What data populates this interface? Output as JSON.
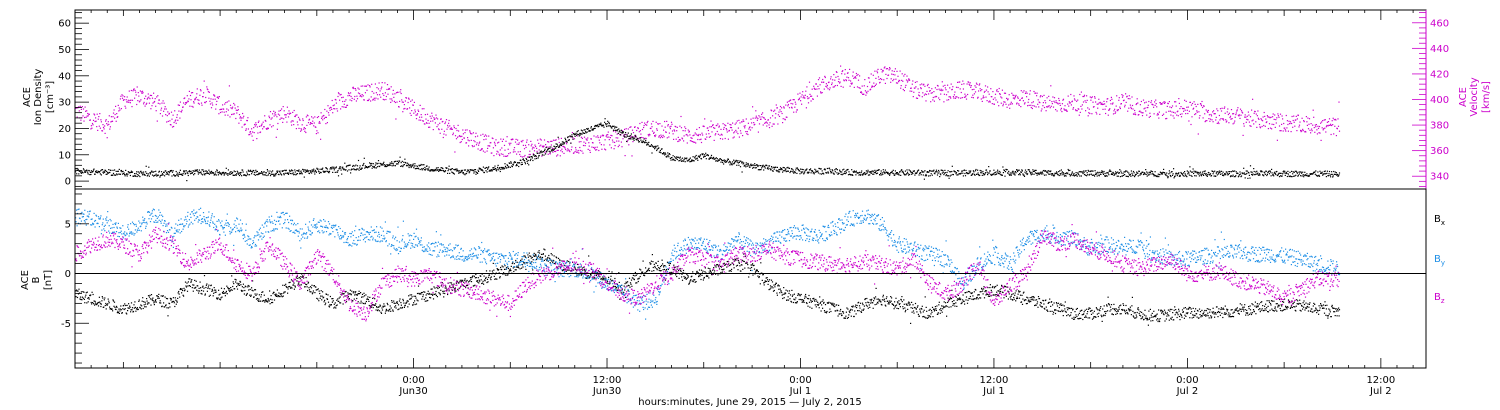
{
  "chart_data": [
    {
      "type": "scatter",
      "title": "",
      "ylabel_lines": [
        "ACE",
        "Ion Density",
        "[cm⁻³]"
      ],
      "ylim": [
        -3,
        65
      ],
      "yticks": [
        0,
        10,
        20,
        30,
        40,
        50,
        60
      ],
      "y2label_lines": [
        "ACE",
        "Velocity",
        "[km/s]"
      ],
      "y2lim": [
        330,
        470
      ],
      "y2ticks": [
        340,
        360,
        380,
        400,
        420,
        440,
        460
      ],
      "x_range_hours": [
        -21,
        62.8
      ],
      "series": [
        {
          "color": "#000000",
          "axis": "left",
          "x": [
            -21,
            -19,
            -17,
            -15,
            -13,
            -11,
            -9,
            -7,
            -5,
            -3,
            -1,
            1,
            3,
            5,
            7,
            9,
            10,
            11,
            12,
            13,
            14,
            15,
            16,
            17,
            18,
            19,
            20,
            21,
            22,
            23,
            24,
            25,
            26,
            27,
            28,
            30,
            32,
            34,
            36,
            38,
            40,
            42,
            44,
            46,
            48,
            50,
            52,
            54,
            56,
            57.4
          ],
          "values": [
            4,
            3.5,
            3,
            3.2,
            3.5,
            3.4,
            3.2,
            3.6,
            4.5,
            6,
            7,
            5,
            3.5,
            5,
            8,
            14,
            18,
            20,
            22,
            18,
            16,
            13,
            9,
            8,
            10,
            8,
            7,
            6,
            5,
            4.5,
            4,
            4,
            4,
            3.5,
            3.5,
            3.5,
            3.3,
            3.3,
            3.5,
            3.5,
            3.2,
            3.2,
            3,
            3,
            3,
            3,
            3,
            3,
            3,
            2.8
          ]
        },
        {
          "color": "#cc00cc",
          "axis": "right",
          "x": [
            -21,
            -20,
            -19,
            -18,
            -17,
            -16,
            -15,
            -14,
            -13,
            -12,
            -11,
            -10,
            -9,
            -8,
            -7,
            -6,
            -5,
            -4,
            -3,
            -2,
            -1,
            0,
            1,
            2,
            3,
            4,
            5,
            6,
            7,
            8,
            9,
            10,
            11,
            12,
            13,
            14,
            15,
            16,
            17,
            18,
            19,
            20,
            21,
            22,
            23,
            24,
            25,
            26,
            27,
            28,
            29,
            30,
            31,
            32,
            33,
            34,
            35,
            36,
            37,
            38,
            39,
            40,
            41,
            42,
            43,
            44,
            45,
            46,
            47,
            48,
            49,
            50,
            51,
            52,
            53,
            54,
            55,
            56,
            57.4
          ],
          "values": [
            392,
            385,
            380,
            400,
            403,
            398,
            385,
            400,
            405,
            395,
            390,
            375,
            385,
            390,
            382,
            380,
            395,
            403,
            405,
            408,
            402,
            392,
            385,
            378,
            373,
            368,
            363,
            363,
            362,
            363,
            363,
            365,
            366,
            368,
            370,
            376,
            378,
            376,
            372,
            373,
            375,
            377,
            380,
            385,
            390,
            400,
            410,
            415,
            418,
            410,
            420,
            418,
            408,
            405,
            405,
            408,
            406,
            403,
            400,
            402,
            397,
            397,
            398,
            396,
            395,
            398,
            394,
            393,
            392,
            394,
            390,
            388,
            388,
            385,
            384,
            382,
            381,
            380,
            379
          ]
        }
      ]
    },
    {
      "type": "scatter",
      "title": "",
      "ylabel_lines": [
        "ACE",
        "B",
        "[nT]"
      ],
      "ylim": [
        -9.5,
        8.5
      ],
      "yticks": [
        -5,
        0,
        5
      ],
      "zero_line": true,
      "x_range_hours": [
        -21,
        62.8
      ],
      "xtick_hours": [
        0,
        12,
        24,
        36,
        48,
        60
      ],
      "xtick_labels": [
        [
          "0:00",
          "Jun30"
        ],
        [
          "12:00",
          "Jun30"
        ],
        [
          "0:00",
          "Jul 1"
        ],
        [
          "12:00",
          "Jul 1"
        ],
        [
          "0:00",
          "Jul 2"
        ],
        [
          "12:00",
          "Jul 2"
        ]
      ],
      "xlabel": "hours:minutes, June 29, 2015 — July  2, 2015",
      "series": [
        {
          "name": "Bx",
          "name_base": "B",
          "name_sub": "x",
          "color": "#000000",
          "x": [
            -21,
            -20,
            -19,
            -18,
            -17,
            -16,
            -15,
            -14,
            -13,
            -12,
            -11,
            -10,
            -9,
            -8,
            -7,
            -6,
            -5,
            -4,
            -3,
            -2,
            -1,
            0,
            1,
            2,
            3,
            4,
            5,
            6,
            7,
            8,
            9,
            10,
            11,
            12,
            13,
            14,
            15,
            16,
            17,
            18,
            19,
            20,
            21,
            22,
            23,
            24,
            25,
            26,
            27,
            28,
            29,
            30,
            31,
            32,
            33,
            34,
            35,
            36,
            37,
            38,
            39,
            40,
            41,
            42,
            43,
            44,
            45,
            46,
            47,
            48,
            49,
            50,
            51,
            52,
            53,
            54,
            55,
            56,
            57.4
          ],
          "values": [
            -2,
            -2.5,
            -3,
            -3.5,
            -3,
            -2.5,
            -3,
            -1,
            -1.5,
            -2,
            -1,
            -2,
            -2.5,
            -1.5,
            -0.5,
            -2,
            -3,
            -2,
            -2.5,
            -3.5,
            -3,
            -2.5,
            -2,
            -1.5,
            -1,
            -0.5,
            0,
            0.5,
            1.5,
            2,
            1,
            0.5,
            0,
            -0.5,
            -1.5,
            0,
            1,
            0.5,
            -0.5,
            0,
            0.5,
            1,
            0.5,
            -1,
            -2,
            -2.5,
            -3,
            -3.5,
            -4,
            -3,
            -2.5,
            -3,
            -3.5,
            -4,
            -3,
            -2.5,
            -2,
            -1.5,
            -2,
            -2.5,
            -3,
            -3.5,
            -4,
            -4,
            -3.5,
            -3.5,
            -4,
            -4.2,
            -4.1,
            -3.9,
            -3.9,
            -3.8,
            -3.7,
            -3.5,
            -3.2,
            -3.1,
            -3.2,
            -3.5,
            -3.8
          ]
        },
        {
          "name": "By",
          "name_base": "B",
          "name_sub": "y",
          "color": "#1f8fe6",
          "x": [
            -21,
            -20,
            -19,
            -18,
            -17,
            -16,
            -15,
            -14,
            -13,
            -12,
            -11,
            -10,
            -9,
            -8,
            -7,
            -6,
            -5,
            -4,
            -3,
            -2,
            -1,
            0,
            1,
            2,
            3,
            4,
            5,
            6,
            7,
            8,
            9,
            10,
            11,
            12,
            13,
            14,
            15,
            16,
            17,
            18,
            19,
            20,
            21,
            22,
            23,
            24,
            25,
            26,
            27,
            28,
            29,
            30,
            31,
            32,
            33,
            34,
            35,
            36,
            37,
            38,
            39,
            40,
            41,
            42,
            43,
            44,
            45,
            46,
            47,
            48,
            49,
            50,
            51,
            52,
            53,
            54,
            55,
            56,
            57.4
          ],
          "values": [
            6,
            5.5,
            5,
            4,
            5,
            6,
            4,
            5.5,
            6,
            4.5,
            5,
            3,
            5,
            5.5,
            4,
            5,
            4.5,
            3.5,
            4,
            4,
            3,
            3.5,
            2.5,
            2.5,
            2,
            2,
            1.5,
            1.5,
            1.5,
            1,
            0.5,
            0.5,
            0,
            -1,
            -2,
            -3,
            -2.5,
            2,
            3,
            3,
            2,
            3.5,
            2.5,
            3,
            4,
            4.2,
            3.8,
            4.5,
            5.5,
            6,
            5,
            3,
            2.5,
            2,
            1.5,
            -1,
            1,
            2,
            1,
            3.5,
            4,
            3.8,
            3.5,
            2.5,
            3,
            2.5,
            3,
            2,
            1.5,
            1.5,
            1.8,
            2,
            2.2,
            2,
            2,
            1.8,
            1.5,
            1,
            0.5
          ]
        },
        {
          "name": "Bz",
          "name_base": "B",
          "name_sub": "z",
          "color": "#cc00cc",
          "x": [
            -21,
            -20,
            -19,
            -18,
            -17,
            -16,
            -15,
            -14,
            -13,
            -12,
            -11,
            -10,
            -9,
            -8,
            -7,
            -6,
            -5,
            -4,
            -3,
            -2,
            -1,
            0,
            1,
            2,
            3,
            4,
            5,
            6,
            7,
            8,
            9,
            10,
            11,
            12,
            13,
            14,
            15,
            16,
            17,
            18,
            19,
            20,
            21,
            22,
            23,
            24,
            25,
            26,
            27,
            28,
            29,
            30,
            31,
            32,
            33,
            34,
            35,
            36,
            37,
            38,
            39,
            40,
            41,
            42,
            43,
            44,
            45,
            46,
            47,
            48,
            49,
            50,
            51,
            52,
            53,
            54,
            55,
            56,
            57.4
          ],
          "values": [
            2,
            3,
            3.5,
            3,
            2,
            4,
            3,
            1,
            2,
            3,
            1,
            0,
            3,
            1,
            -1,
            2,
            0,
            -3,
            -4,
            -1,
            0,
            -0.5,
            0,
            -1,
            -1.5,
            -2,
            -2.5,
            -3,
            -1,
            0,
            0.5,
            1,
            0.5,
            -1,
            -2,
            -2.5,
            -1,
            0,
            2,
            1.5,
            1,
            2,
            2,
            2.5,
            1.8,
            1.5,
            1.2,
            1,
            1,
            1.2,
            1,
            0.5,
            1.5,
            -1,
            -2,
            -1,
            1,
            -3,
            -1,
            0,
            4,
            3,
            3.5,
            2.5,
            2,
            1,
            0.5,
            1,
            1.5,
            0,
            0,
            0.3,
            -0.5,
            -1,
            -1.5,
            -2.5,
            -1.5,
            -0.5,
            -0.5
          ]
        }
      ]
    }
  ]
}
